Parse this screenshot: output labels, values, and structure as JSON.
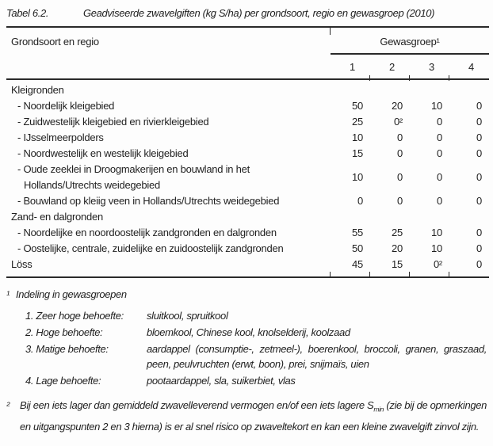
{
  "colors": {
    "text": "#1f1f1f",
    "rule": "#2a2a2a",
    "background": "#fdfdfd"
  },
  "caption": {
    "label": "Tabel 6.2.",
    "text": "Geadviseerde zwavelgiften (kg S/ha) per grondsoort, regio en gewasgroep (2010)"
  },
  "table": {
    "row_header": "Grondsoort en regio",
    "col_group": "Gewasgroep¹",
    "columns": [
      "1",
      "2",
      "3",
      "4"
    ],
    "rows": [
      {
        "label": "Kleigronden",
        "values": [
          "",
          "",
          "",
          ""
        ]
      },
      {
        "label": "- Noordelijk kleigebied",
        "values": [
          "50",
          "20",
          "10",
          "0"
        ]
      },
      {
        "label": "- Zuidwestelijk kleigebied en rivierkleigebied",
        "values": [
          "25",
          "0²",
          "0",
          "0"
        ]
      },
      {
        "label": "- IJsselmeerpolders",
        "values": [
          "10",
          "0",
          "0",
          "0"
        ]
      },
      {
        "label": "- Noordwestelijk en westelijk kleigebied",
        "values": [
          "15",
          "0",
          "0",
          "0"
        ]
      },
      {
        "label": "- Oude zeeklei in Droogmakerijen en bouwland in het",
        "label2": "Hollands/Utrechts weidegebied",
        "values": [
          "10",
          "0",
          "0",
          "0"
        ]
      },
      {
        "label": "- Bouwland op kleiig veen in Hollands/Utrechts weidegebied",
        "values": [
          "0",
          "0",
          "0",
          "0"
        ]
      },
      {
        "label": "Zand- en dalgronden",
        "values": [
          "",
          "",
          "",
          ""
        ]
      },
      {
        "label": "- Noordelijke en noordoostelijk zandgronden en dalgronden",
        "values": [
          "55",
          "25",
          "10",
          "0"
        ]
      },
      {
        "label": "- Oostelijke, centrale, zuidelijke en zuidoostelijk zandgronden",
        "values": [
          "50",
          "20",
          "10",
          "0"
        ]
      },
      {
        "label": "Löss",
        "values": [
          "45",
          "15",
          "0²",
          "0"
        ]
      }
    ]
  },
  "footnote1": {
    "marker": "¹",
    "title": "Indeling in gewasgroepen",
    "items": [
      {
        "term": "1. Zeer hoge behoefte:",
        "desc": "sluitkool, spruitkool"
      },
      {
        "term": "2. Hoge behoefte:",
        "desc": "bloemkool, Chinese kool, knolselderij, koolzaad"
      },
      {
        "term": "3. Matige behoefte:",
        "desc": "aardappel (consumptie-, zetmeel-), boerenkool, broccoli, granen, graszaad, peen, peulvruchten (erwt, boon), prei, snijmaïs, uien"
      },
      {
        "term": "4. Lage behoefte:",
        "desc": "pootaardappel, sla, suikerbiet, vlas"
      }
    ]
  },
  "footnote2": {
    "marker": "²",
    "text_before": "Bij een iets lager dan gemiddeld zwavelleverend vermogen en/of een iets lagere S",
    "sub": "min",
    "text_after": " (zie bij de opmerkingen en uitgangspunten 2 en 3 hierna) is er al snel risico op zwaveltekort en kan een kleine zwavelgift zinvol zijn."
  }
}
